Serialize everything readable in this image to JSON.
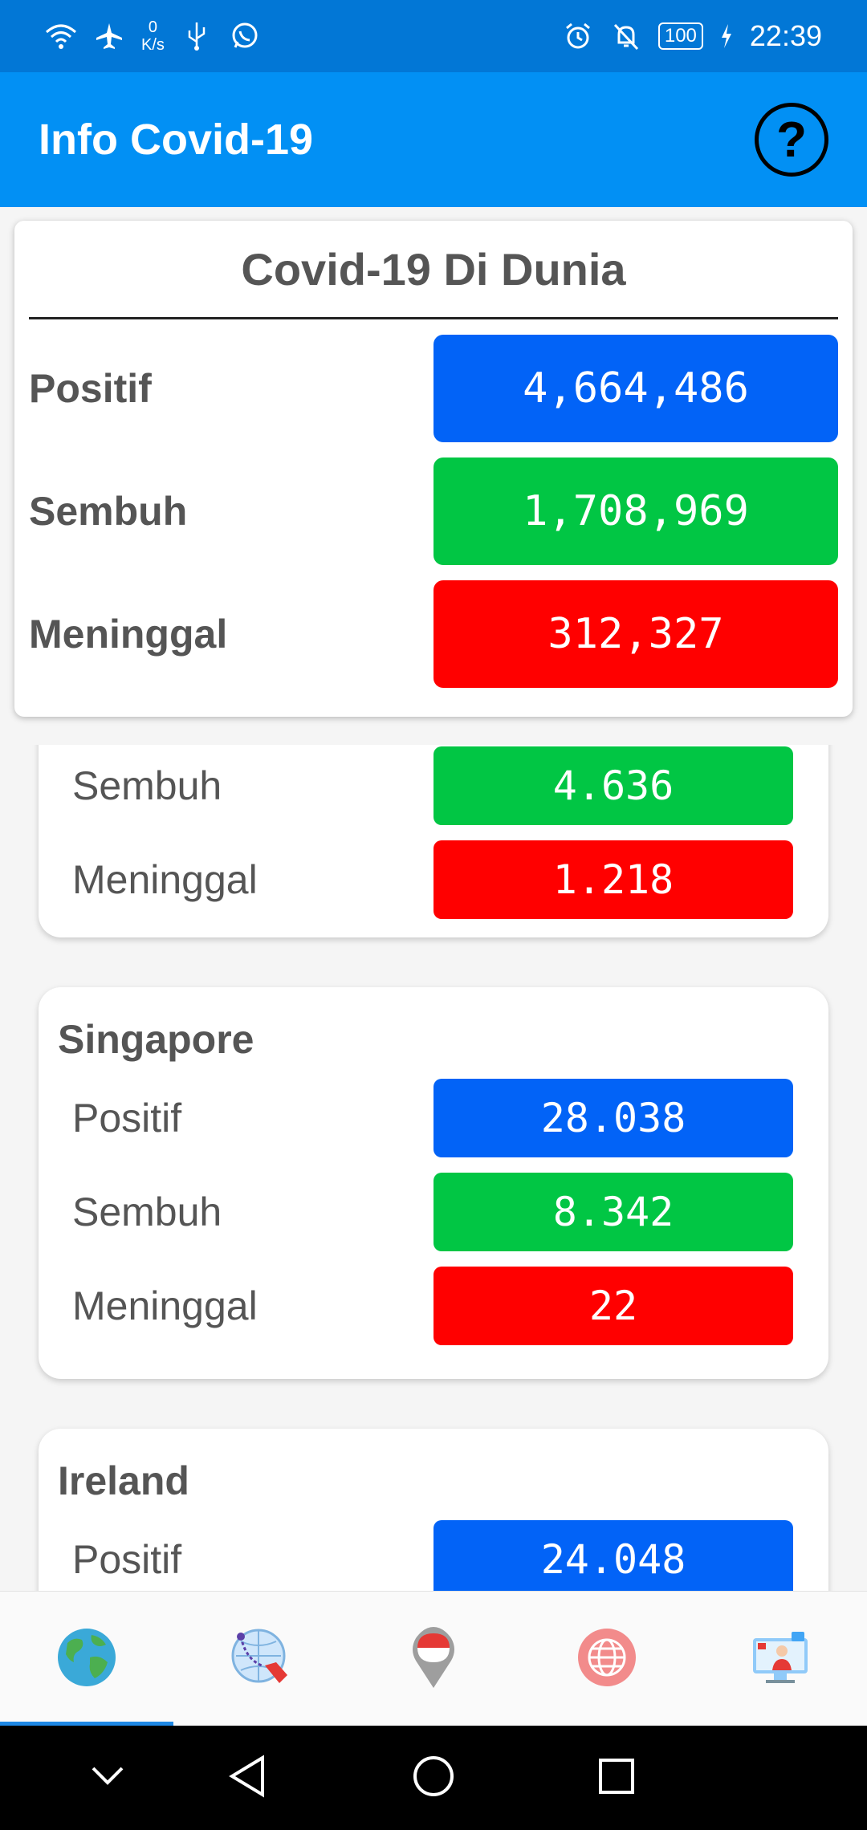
{
  "status_bar": {
    "net_speed_value": "0",
    "net_speed_unit": "K/s",
    "battery": "100",
    "time": "22:39"
  },
  "app_bar": {
    "title": "Info Covid-19",
    "help_symbol": "?"
  },
  "global": {
    "title": "Covid-19 Di Dunia",
    "rows": [
      {
        "label": "Positif",
        "value": "4,664,486",
        "color": "#0263f7"
      },
      {
        "label": "Sembuh",
        "value": "1,708,969",
        "color": "#01c644"
      },
      {
        "label": "Meninggal",
        "value": "312,327",
        "color": "#ff0000"
      }
    ]
  },
  "countries": [
    {
      "name": "",
      "rows": [
        {
          "label": "Sembuh",
          "value": "4.636",
          "color": "#01c644"
        },
        {
          "label": "Meninggal",
          "value": "1.218",
          "color": "#ff0000"
        }
      ]
    },
    {
      "name": "Singapore",
      "rows": [
        {
          "label": "Positif",
          "value": "28.038",
          "color": "#0263f7"
        },
        {
          "label": "Sembuh",
          "value": "8.342",
          "color": "#01c644"
        },
        {
          "label": "Meninggal",
          "value": "22",
          "color": "#ff0000"
        }
      ]
    },
    {
      "name": "Ireland",
      "rows": [
        {
          "label": "Positif",
          "value": "24.048",
          "color": "#0263f7"
        }
      ]
    }
  ],
  "bottom_nav": {
    "items": [
      "globe-icon",
      "world-map-route-icon",
      "indonesia-pin-icon",
      "web-globe-icon",
      "info-person-icon"
    ],
    "selected": 0
  }
}
